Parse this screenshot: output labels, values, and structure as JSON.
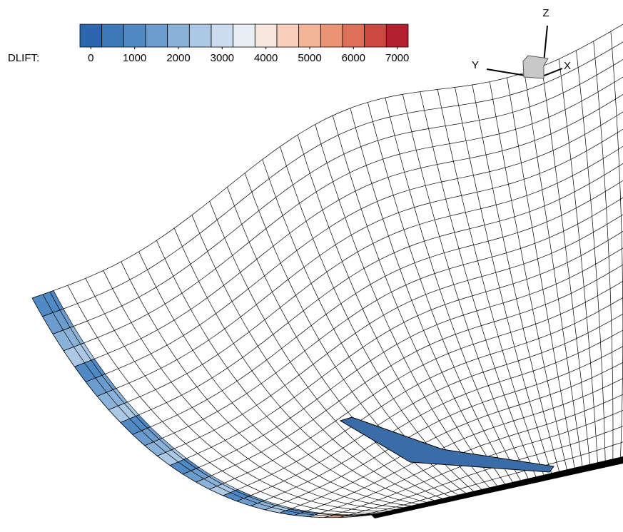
{
  "colorbar": {
    "label": "DLIFT:",
    "range": [
      -250,
      7250
    ],
    "ticks": [
      0,
      1000,
      2000,
      3000,
      4000,
      5000,
      6000,
      7000
    ],
    "colors": [
      "#2c66ac",
      "#3d78b8",
      "#5089c3",
      "#6b9ccd",
      "#8bb2d9",
      "#abc8e4",
      "#cadcee",
      "#e9eef4",
      "#f7e7de",
      "#f8d0bb",
      "#f4b597",
      "#eb9474",
      "#dd7058",
      "#cc4942",
      "#b2202f"
    ]
  },
  "axes_triad": {
    "x": "X",
    "y": "Y",
    "z": "Z"
  }
}
